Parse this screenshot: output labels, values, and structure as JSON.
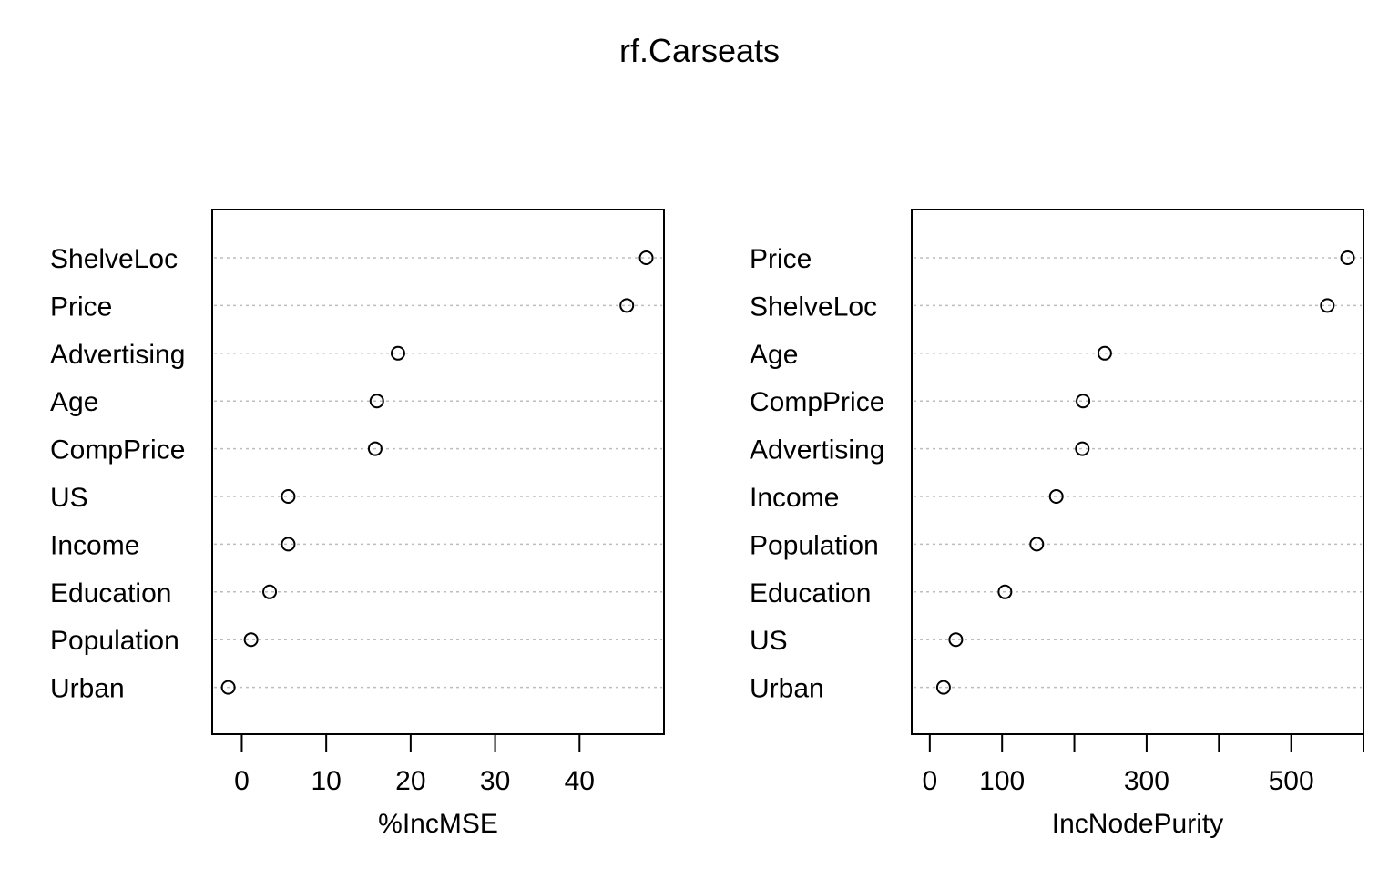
{
  "title": "rf.Carseats",
  "chart_data": [
    {
      "type": "scatter",
      "subtype": "dotchart",
      "xlabel": "%IncMSE",
      "xlim": [
        -3.5,
        50
      ],
      "xticks": [
        0,
        10,
        20,
        30,
        40
      ],
      "xtick_labels": [
        "0",
        "10",
        "20",
        "30",
        "40"
      ],
      "grid": "dotted horizontal",
      "categories": [
        "ShelveLoc",
        "Price",
        "Advertising",
        "Age",
        "CompPrice",
        "US",
        "Income",
        "Education",
        "Population",
        "Urban"
      ],
      "values": [
        47.9,
        45.6,
        18.5,
        16.0,
        15.8,
        5.5,
        5.5,
        3.3,
        1.1,
        -1.6
      ]
    },
    {
      "type": "scatter",
      "subtype": "dotchart",
      "xlabel": "IncNodePurity",
      "xlim": [
        -25,
        600
      ],
      "xticks": [
        0,
        100,
        200,
        300,
        400,
        500,
        600
      ],
      "xtick_labels": [
        "0",
        "100",
        "",
        "300",
        "",
        "500",
        ""
      ],
      "grid": "dotted horizontal",
      "categories": [
        "Price",
        "ShelveLoc",
        "Age",
        "CompPrice",
        "Advertising",
        "Income",
        "Population",
        "Education",
        "US",
        "Urban"
      ],
      "values": [
        578,
        550,
        242,
        212,
        211,
        175,
        148,
        104,
        36,
        19
      ]
    }
  ]
}
